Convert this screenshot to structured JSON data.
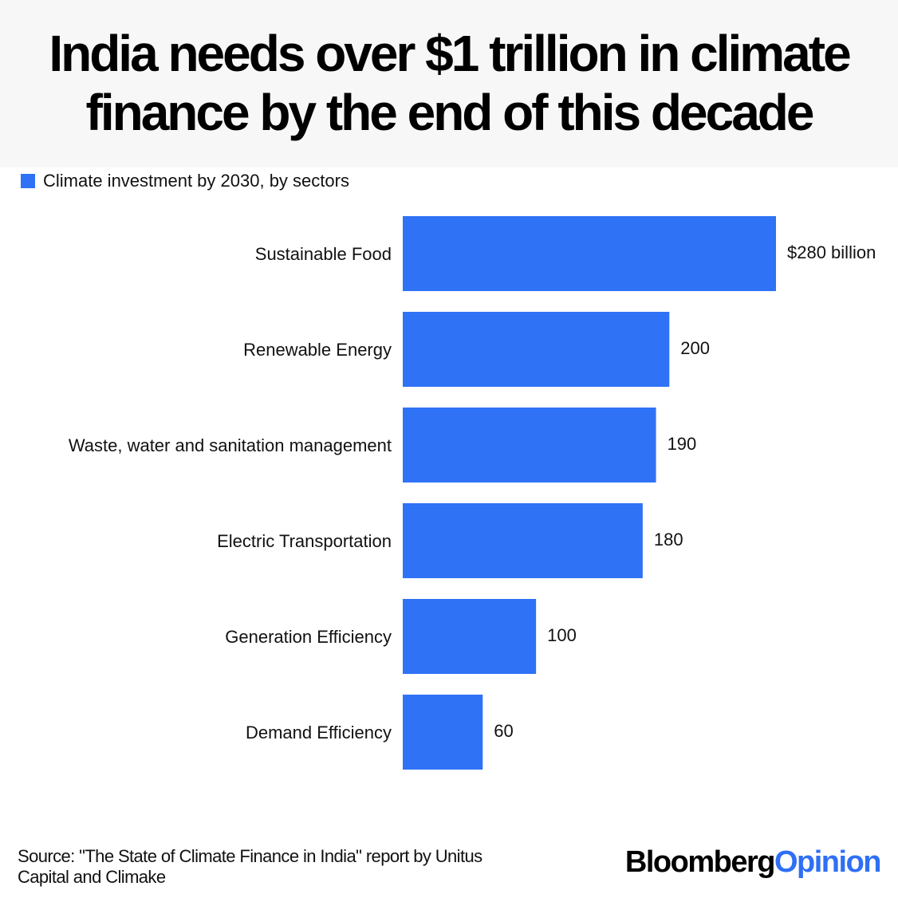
{
  "header": {
    "title": "India needs over $1 trillion in climate finance by the end of this decade"
  },
  "legend": {
    "label": "Climate investment by 2030, by sectors",
    "color": "#2f72f6"
  },
  "chart_data": {
    "type": "bar",
    "orientation": "horizontal",
    "categories": [
      "Sustainable Food",
      "Renewable Energy",
      "Waste, water and sanitation management",
      "Electric Transportation",
      "Generation Efficiency",
      "Demand Efficiency"
    ],
    "values": [
      280,
      200,
      190,
      180,
      100,
      60
    ],
    "value_labels": [
      "$280 billion",
      "200",
      "190",
      "180",
      "100",
      "60"
    ],
    "series": [
      {
        "name": "Climate investment by 2030, by sectors",
        "values": [
          280,
          200,
          190,
          180,
          100,
          60
        ]
      }
    ],
    "unit": "billion",
    "xlim": [
      0,
      280
    ],
    "grid": false,
    "legend_position": "top-left",
    "bar_color": "#2f72f6"
  },
  "footer": {
    "source": "Source: \"The State of Climate Finance in India\" report by Unitus Capital and Climake",
    "logo_part1": "Bloomberg",
    "logo_part2": "Opinion"
  }
}
